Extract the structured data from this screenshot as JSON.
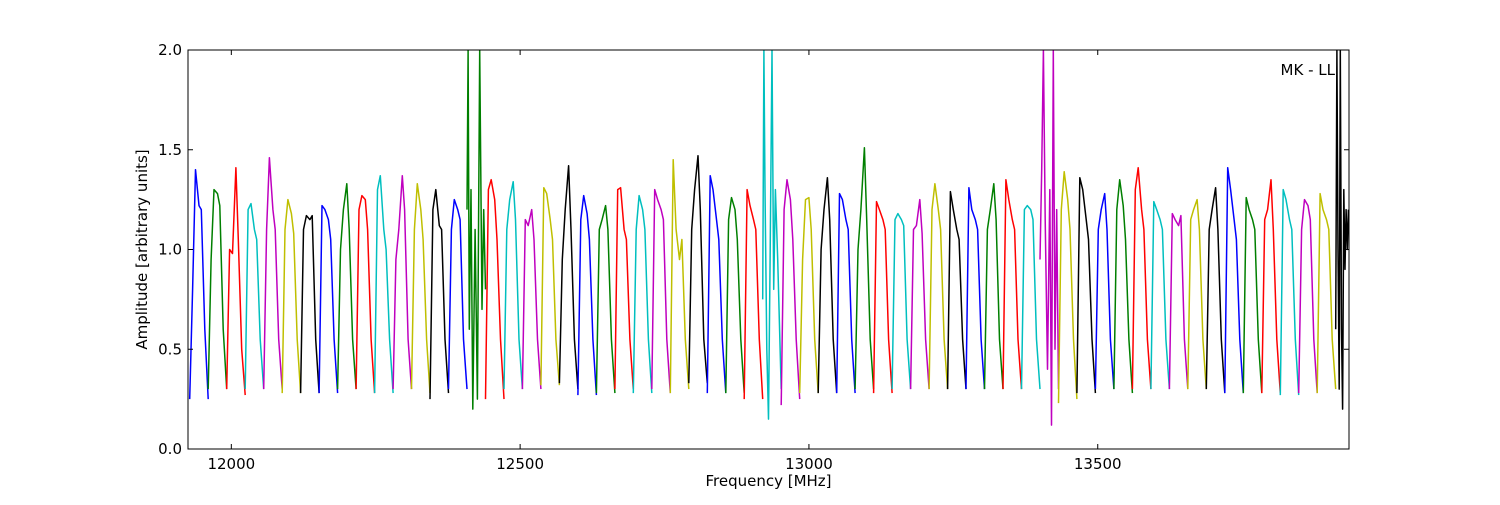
{
  "chart_data": {
    "type": "line",
    "title": "",
    "annotation": "MK - LL",
    "xlabel": "Frequency [MHz]",
    "ylabel": "Amplitude [arbitrary units]",
    "xlim": [
      11925,
      13935
    ],
    "ylim": [
      0.0,
      2.0
    ],
    "xticks": [
      12000,
      12500,
      13000,
      13500
    ],
    "yticks": [
      0.0,
      0.5,
      1.0,
      1.5,
      2.0
    ],
    "xtick_labels": [
      "12000",
      "12500",
      "13000",
      "13500"
    ],
    "ytick_labels": [
      "0.0",
      "0.5",
      "1.0",
      "1.5",
      "2.0"
    ],
    "grid": false,
    "color_cycle": [
      "#0000ff",
      "#007f00",
      "#ff0000",
      "#00bfbf",
      "#bf00bf",
      "#bfbf00",
      "#000000"
    ],
    "channel_width_mhz": 32,
    "first_channel_start_mhz": 11928,
    "series": [
      {
        "x": [
          11928,
          11933,
          11938,
          11944,
          11948,
          11954,
          11960
        ],
        "y": [
          0.25,
          0.8,
          1.4,
          1.22,
          1.2,
          0.6,
          0.25
        ]
      },
      {
        "x": [
          11960,
          11965,
          11970,
          11976,
          11980,
          11986,
          11992
        ],
        "y": [
          0.3,
          0.95,
          1.3,
          1.28,
          1.22,
          0.6,
          0.3
        ]
      },
      {
        "x": [
          11992,
          11997,
          12002,
          12008,
          12012,
          12018,
          12024
        ],
        "y": [
          0.3,
          1.0,
          0.98,
          1.41,
          1.05,
          0.5,
          0.27
        ]
      },
      {
        "x": [
          12024,
          12029,
          12034,
          12040,
          12044,
          12050,
          12056
        ],
        "y": [
          0.3,
          1.2,
          1.23,
          1.1,
          1.05,
          0.55,
          0.3
        ]
      },
      {
        "x": [
          12056,
          12061,
          12066,
          12072,
          12076,
          12082,
          12088
        ],
        "y": [
          0.3,
          1.1,
          1.46,
          1.2,
          1.1,
          0.55,
          0.3
        ]
      },
      {
        "x": [
          12088,
          12093,
          12098,
          12104,
          12108,
          12114,
          12120
        ],
        "y": [
          0.28,
          1.1,
          1.25,
          1.18,
          1.08,
          0.55,
          0.28
        ]
      },
      {
        "x": [
          12120,
          12125,
          12130,
          12136,
          12140,
          12146,
          12152
        ],
        "y": [
          0.28,
          1.1,
          1.17,
          1.15,
          1.17,
          0.55,
          0.28
        ]
      },
      {
        "x": [
          12152,
          12157,
          12162,
          12168,
          12172,
          12178,
          12184
        ],
        "y": [
          0.28,
          1.22,
          1.2,
          1.15,
          1.05,
          0.55,
          0.28
        ]
      },
      {
        "x": [
          12184,
          12189,
          12194,
          12200,
          12204,
          12210,
          12216
        ],
        "y": [
          0.3,
          1.0,
          1.2,
          1.33,
          1.1,
          0.55,
          0.3
        ]
      },
      {
        "x": [
          12216,
          12221,
          12226,
          12232,
          12236,
          12242,
          12248
        ],
        "y": [
          0.3,
          1.2,
          1.27,
          1.25,
          1.1,
          0.55,
          0.28
        ]
      },
      {
        "x": [
          12248,
          12253,
          12258,
          12264,
          12268,
          12274,
          12280
        ],
        "y": [
          0.28,
          1.3,
          1.37,
          1.1,
          1.0,
          0.55,
          0.28
        ]
      },
      {
        "x": [
          12280,
          12285,
          12290,
          12296,
          12300,
          12306,
          12312
        ],
        "y": [
          0.3,
          0.95,
          1.1,
          1.37,
          1.2,
          0.55,
          0.3
        ]
      },
      {
        "x": [
          12312,
          12317,
          12322,
          12328,
          12332,
          12338,
          12344
        ],
        "y": [
          0.3,
          1.1,
          1.33,
          1.2,
          1.05,
          0.55,
          0.28
        ]
      },
      {
        "x": [
          12344,
          12349,
          12354,
          12360,
          12364,
          12370,
          12376
        ],
        "y": [
          0.25,
          1.2,
          1.3,
          1.12,
          1.1,
          0.55,
          0.28
        ]
      },
      {
        "x": [
          12376,
          12381,
          12386,
          12392,
          12396,
          12402,
          12408
        ],
        "y": [
          0.3,
          1.1,
          1.25,
          1.2,
          1.15,
          0.55,
          0.3
        ]
      },
      {
        "x": [
          12408,
          12410,
          12412,
          12415,
          12418,
          12422,
          12426,
          12430,
          12434,
          12437,
          12440
        ],
        "y": [
          1.2,
          2.0,
          0.6,
          1.3,
          0.2,
          1.1,
          0.25,
          2.0,
          0.7,
          1.2,
          0.8
        ]
      },
      {
        "x": [
          12440,
          12445,
          12450,
          12456,
          12460,
          12466,
          12472
        ],
        "y": [
          0.25,
          1.3,
          1.35,
          1.25,
          1.05,
          0.55,
          0.25
        ]
      },
      {
        "x": [
          12472,
          12477,
          12482,
          12488,
          12492,
          12498,
          12504
        ],
        "y": [
          0.3,
          1.1,
          1.25,
          1.34,
          1.15,
          0.55,
          0.3
        ]
      },
      {
        "x": [
          12504,
          12509,
          12514,
          12520,
          12524,
          12530,
          12536
        ],
        "y": [
          0.3,
          1.15,
          1.12,
          1.2,
          1.05,
          0.55,
          0.3
        ]
      },
      {
        "x": [
          12536,
          12541,
          12546,
          12552,
          12556,
          12562,
          12568
        ],
        "y": [
          0.32,
          1.31,
          1.28,
          1.15,
          1.05,
          0.55,
          0.32
        ]
      },
      {
        "x": [
          12568,
          12573,
          12578,
          12584,
          12588,
          12594,
          12600
        ],
        "y": [
          0.33,
          0.95,
          1.2,
          1.42,
          1.1,
          0.55,
          0.3
        ]
      },
      {
        "x": [
          12600,
          12605,
          12610,
          12616,
          12620,
          12626,
          12632
        ],
        "y": [
          0.27,
          1.15,
          1.27,
          1.18,
          1.05,
          0.55,
          0.27
        ]
      },
      {
        "x": [
          12632,
          12637,
          12642,
          12648,
          12652,
          12658,
          12664
        ],
        "y": [
          0.28,
          1.1,
          1.15,
          1.22,
          1.1,
          0.55,
          0.28
        ]
      },
      {
        "x": [
          12664,
          12669,
          12674,
          12680,
          12684,
          12690,
          12696
        ],
        "y": [
          0.3,
          1.3,
          1.31,
          1.1,
          1.05,
          0.55,
          0.3
        ]
      },
      {
        "x": [
          12696,
          12701,
          12706,
          12712,
          12716,
          12722,
          12728
        ],
        "y": [
          0.28,
          1.1,
          1.27,
          1.2,
          1.1,
          0.55,
          0.28
        ]
      },
      {
        "x": [
          12728,
          12733,
          12738,
          12744,
          12748,
          12754,
          12760
        ],
        "y": [
          0.3,
          1.3,
          1.25,
          1.2,
          1.15,
          0.55,
          0.28
        ]
      },
      {
        "x": [
          12760,
          12765,
          12770,
          12776,
          12780,
          12786,
          12792
        ],
        "y": [
          0.28,
          1.45,
          1.1,
          0.95,
          1.05,
          0.55,
          0.3
        ]
      },
      {
        "x": [
          12792,
          12797,
          12802,
          12808,
          12812,
          12818,
          12824
        ],
        "y": [
          0.33,
          1.1,
          1.3,
          1.47,
          1.2,
          0.55,
          0.33
        ]
      },
      {
        "x": [
          12824,
          12829,
          12834,
          12840,
          12844,
          12850,
          12856
        ],
        "y": [
          0.28,
          1.37,
          1.3,
          1.15,
          1.05,
          0.55,
          0.28
        ]
      },
      {
        "x": [
          12856,
          12861,
          12866,
          12872,
          12876,
          12882,
          12888
        ],
        "y": [
          0.28,
          1.15,
          1.26,
          1.2,
          1.05,
          0.55,
          0.28
        ]
      },
      {
        "x": [
          12888,
          12893,
          12898,
          12904,
          12908,
          12914,
          12920
        ],
        "y": [
          0.25,
          1.3,
          1.22,
          1.15,
          1.1,
          0.55,
          0.25
        ]
      },
      {
        "x": [
          12920,
          12922,
          12924,
          12927,
          12930,
          12933,
          12936,
          12939,
          12942,
          12946,
          12952
        ],
        "y": [
          0.75,
          2.0,
          1.3,
          0.5,
          0.15,
          1.0,
          2.0,
          0.8,
          1.3,
          0.95,
          0.3
        ]
      },
      {
        "x": [
          12952,
          12957,
          12962,
          12968,
          12972,
          12978,
          12984
        ],
        "y": [
          0.22,
          1.2,
          1.35,
          1.25,
          1.05,
          0.55,
          0.25
        ]
      },
      {
        "x": [
          12984,
          12989,
          12994,
          13000,
          13004,
          13010,
          13016
        ],
        "y": [
          0.28,
          0.95,
          1.25,
          1.26,
          1.1,
          0.55,
          0.28
        ]
      },
      {
        "x": [
          13016,
          13021,
          13026,
          13032,
          13036,
          13042,
          13048
        ],
        "y": [
          0.28,
          1.0,
          1.2,
          1.36,
          1.15,
          0.55,
          0.28
        ]
      },
      {
        "x": [
          13048,
          13053,
          13058,
          13064,
          13068,
          13074,
          13080
        ],
        "y": [
          0.28,
          1.28,
          1.25,
          1.15,
          1.1,
          0.55,
          0.28
        ]
      },
      {
        "x": [
          13080,
          13085,
          13090,
          13096,
          13100,
          13106,
          13112
        ],
        "y": [
          0.3,
          1.0,
          1.2,
          1.51,
          1.15,
          0.55,
          0.3
        ]
      },
      {
        "x": [
          13112,
          13117,
          13122,
          13128,
          13132,
          13138,
          13144
        ],
        "y": [
          0.28,
          1.24,
          1.2,
          1.15,
          1.1,
          0.55,
          0.28
        ]
      },
      {
        "x": [
          13144,
          13149,
          13154,
          13160,
          13164,
          13170,
          13176
        ],
        "y": [
          0.3,
          1.15,
          1.18,
          1.15,
          1.12,
          0.55,
          0.3
        ]
      },
      {
        "x": [
          13176,
          13181,
          13186,
          13192,
          13196,
          13202,
          13208
        ],
        "y": [
          0.3,
          1.1,
          1.12,
          1.25,
          1.08,
          0.55,
          0.3
        ]
      },
      {
        "x": [
          13208,
          13213,
          13218,
          13224,
          13228,
          13234,
          13240
        ],
        "y": [
          0.3,
          1.2,
          1.33,
          1.2,
          1.1,
          0.55,
          0.3
        ]
      },
      {
        "x": [
          13240,
          13245,
          13250,
          13256,
          13260,
          13266,
          13272
        ],
        "y": [
          0.3,
          1.29,
          1.2,
          1.1,
          1.05,
          0.55,
          0.3
        ]
      },
      {
        "x": [
          13272,
          13277,
          13282,
          13288,
          13292,
          13298,
          13304
        ],
        "y": [
          0.3,
          1.31,
          1.2,
          1.15,
          1.1,
          0.55,
          0.3
        ]
      },
      {
        "x": [
          13304,
          13309,
          13314,
          13320,
          13324,
          13330,
          13336
        ],
        "y": [
          0.3,
          1.1,
          1.2,
          1.33,
          1.15,
          0.55,
          0.3
        ]
      },
      {
        "x": [
          13336,
          13341,
          13346,
          13352,
          13356,
          13362,
          13368
        ],
        "y": [
          0.3,
          1.35,
          1.25,
          1.15,
          1.1,
          0.55,
          0.3
        ]
      },
      {
        "x": [
          13368,
          13373,
          13378,
          13384,
          13388,
          13394,
          13400
        ],
        "y": [
          0.3,
          1.2,
          1.22,
          1.2,
          1.15,
          0.55,
          0.3
        ]
      },
      {
        "x": [
          13400,
          13403,
          13406,
          13409,
          13413,
          13417,
          13420,
          13423,
          13426,
          13429,
          13432
        ],
        "y": [
          0.95,
          1.4,
          2.0,
          1.15,
          0.4,
          1.3,
          0.12,
          2.0,
          0.5,
          1.2,
          0.3
        ]
      },
      {
        "x": [
          13432,
          13437,
          13442,
          13448,
          13452,
          13458,
          13464
        ],
        "y": [
          0.23,
          1.2,
          1.39,
          1.25,
          1.1,
          0.55,
          0.25
        ]
      },
      {
        "x": [
          13464,
          13469,
          13474,
          13480,
          13484,
          13490,
          13496
        ],
        "y": [
          0.28,
          1.36,
          1.3,
          1.15,
          1.05,
          0.55,
          0.28
        ]
      },
      {
        "x": [
          13496,
          13501,
          13506,
          13512,
          13516,
          13522,
          13528
        ],
        "y": [
          0.3,
          1.1,
          1.2,
          1.28,
          1.1,
          0.55,
          0.3
        ]
      },
      {
        "x": [
          13528,
          13533,
          13538,
          13544,
          13548,
          13554,
          13560
        ],
        "y": [
          0.3,
          1.2,
          1.35,
          1.22,
          1.05,
          0.55,
          0.28
        ]
      },
      {
        "x": [
          13560,
          13565,
          13570,
          13576,
          13580,
          13586,
          13592
        ],
        "y": [
          0.3,
          1.3,
          1.41,
          1.2,
          1.1,
          0.55,
          0.3
        ]
      },
      {
        "x": [
          13592,
          13597,
          13602,
          13608,
          13612,
          13618,
          13624
        ],
        "y": [
          0.3,
          1.24,
          1.2,
          1.15,
          1.1,
          0.55,
          0.3
        ]
      },
      {
        "x": [
          13624,
          13629,
          13634,
          13640,
          13644,
          13650,
          13656
        ],
        "y": [
          0.3,
          1.18,
          1.15,
          1.12,
          1.17,
          0.55,
          0.3
        ]
      },
      {
        "x": [
          13656,
          13661,
          13666,
          13672,
          13676,
          13682,
          13688
        ],
        "y": [
          0.3,
          1.15,
          1.2,
          1.25,
          1.1,
          0.55,
          0.3
        ]
      },
      {
        "x": [
          13688,
          13693,
          13698,
          13704,
          13708,
          13714,
          13720
        ],
        "y": [
          0.3,
          1.1,
          1.2,
          1.31,
          1.1,
          0.55,
          0.28
        ]
      },
      {
        "x": [
          13720,
          13725,
          13730,
          13736,
          13740,
          13746,
          13752
        ],
        "y": [
          0.28,
          1.41,
          1.3,
          1.15,
          1.05,
          0.55,
          0.28
        ]
      },
      {
        "x": [
          13752,
          13757,
          13762,
          13768,
          13772,
          13778,
          13784
        ],
        "y": [
          0.28,
          1.26,
          1.2,
          1.15,
          1.1,
          0.55,
          0.28
        ]
      },
      {
        "x": [
          13784,
          13789,
          13794,
          13800,
          13804,
          13810,
          13816
        ],
        "y": [
          0.28,
          1.15,
          1.2,
          1.35,
          1.1,
          0.55,
          0.28
        ]
      },
      {
        "x": [
          13816,
          13821,
          13826,
          13832,
          13836,
          13842,
          13848
        ],
        "y": [
          0.27,
          1.3,
          1.25,
          1.15,
          1.1,
          0.55,
          0.27
        ]
      },
      {
        "x": [
          13848,
          13853,
          13858,
          13864,
          13868,
          13874,
          13880
        ],
        "y": [
          0.28,
          1.1,
          1.25,
          1.22,
          1.15,
          0.55,
          0.28
        ]
      },
      {
        "x": [
          13880,
          13885,
          13890,
          13896,
          13900,
          13906,
          13912
        ],
        "y": [
          0.28,
          1.28,
          1.2,
          1.15,
          1.1,
          0.55,
          0.3
        ]
      },
      {
        "x": [
          13912,
          13914,
          13916,
          13918,
          13920,
          13922,
          13924,
          13926,
          13928,
          13930,
          13932,
          13934
        ],
        "y": [
          0.6,
          2.0,
          1.0,
          0.3,
          2.0,
          0.6,
          0.2,
          1.3,
          0.9,
          1.2,
          1.0,
          1.2
        ]
      }
    ]
  }
}
